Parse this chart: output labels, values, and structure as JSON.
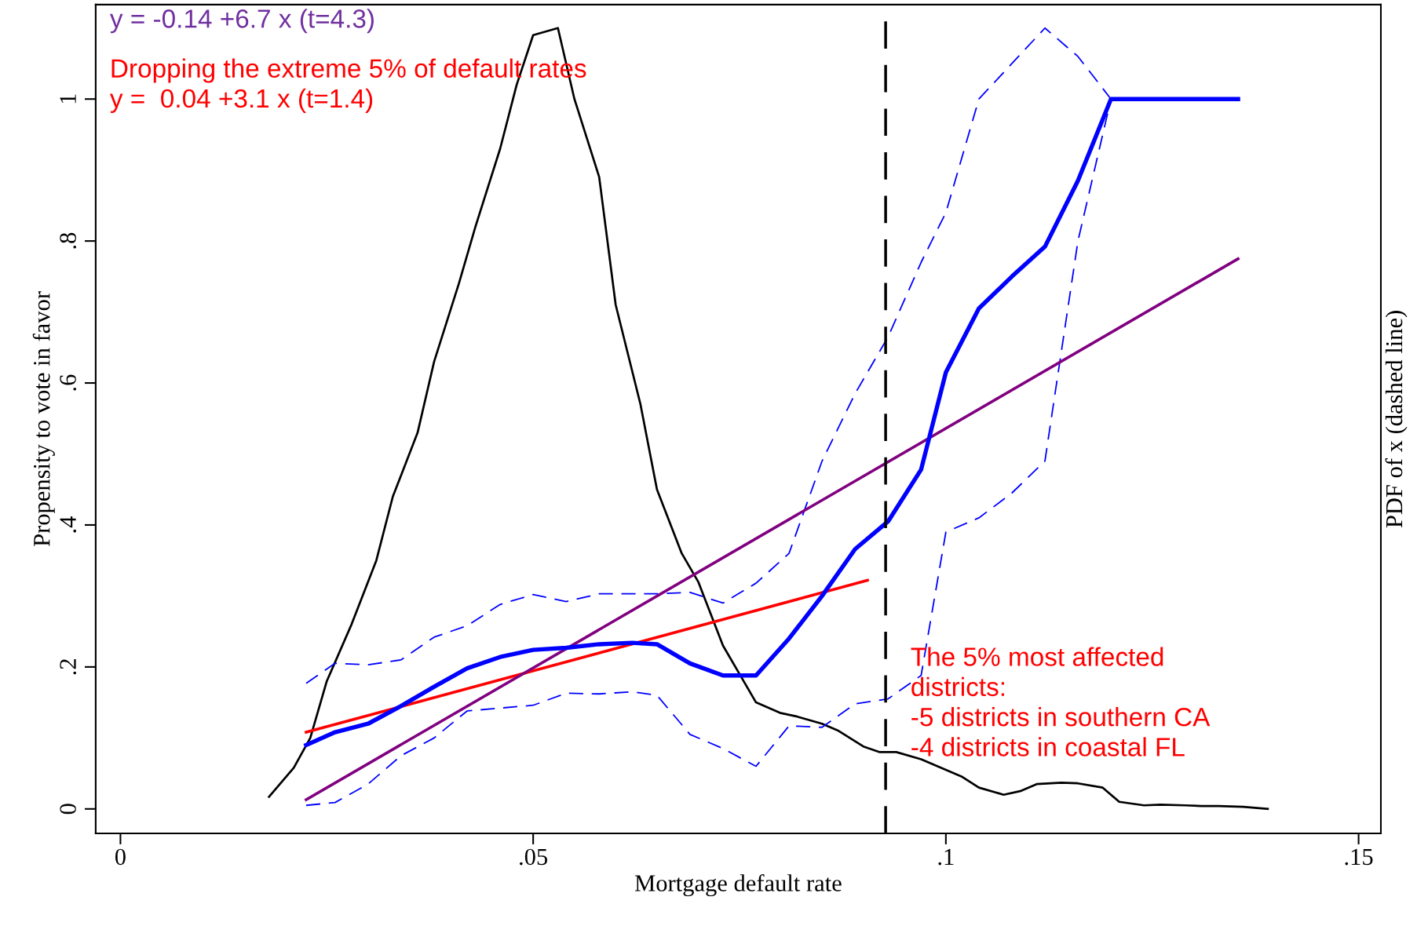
{
  "chart_data": {
    "type": "line",
    "xlabel": "Mortgage default rate",
    "ylabel": "Propensity to vote in favor",
    "y2label": "PDF of x (dashed line)",
    "xlim": [
      -0.003,
      0.1527
    ],
    "xticks": [
      0,
      {
        "value": 0.05,
        "label": ".05"
      },
      {
        "value": 0.1,
        "label": ".1"
      },
      {
        "value": 0.15,
        "label": ".15"
      }
    ],
    "ylim": [
      -0.0345,
      1.133
    ],
    "yticks": [
      0,
      {
        "value": 0.2,
        "label": ".2"
      },
      {
        "value": 0.4,
        "label": ".4"
      },
      {
        "value": 0.6,
        "label": ".6"
      },
      {
        "value": 0.8,
        "label": ".8"
      },
      1
    ],
    "grid": false,
    "legend": false,
    "marker": "none",
    "series": [
      {
        "color": "#000000",
        "line_style": "solid",
        "x": [
          0.018,
          0.021,
          0.023,
          0.025,
          0.028,
          0.031,
          0.033,
          0.036,
          0.038,
          0.041,
          0.043,
          0.046,
          0.048,
          0.05,
          0.053,
          0.055,
          0.058,
          0.06,
          0.063,
          0.065,
          0.068,
          0.07,
          0.073,
          0.075,
          0.077,
          0.08,
          0.082,
          0.085,
          0.087,
          0.09,
          0.092,
          0.094,
          0.097,
          0.099,
          0.102,
          0.104,
          0.107,
          0.109,
          0.111,
          0.114,
          0.116,
          0.119,
          0.121,
          0.124,
          0.126,
          0.129,
          0.131,
          0.133,
          0.136,
          0.139
        ],
        "values": [
          0.017,
          0.058,
          0.1,
          0.18,
          0.26,
          0.35,
          0.44,
          0.53,
          0.63,
          0.74,
          0.82,
          0.93,
          1.02,
          1.09,
          1.1,
          1.0,
          0.89,
          0.71,
          0.57,
          0.45,
          0.36,
          0.32,
          0.23,
          0.19,
          0.15,
          0.135,
          0.13,
          0.12,
          0.11,
          0.088,
          0.08,
          0.08,
          0.07,
          0.06,
          0.045,
          0.03,
          0.02,
          0.025,
          0.035,
          0.037,
          0.036,
          0.03,
          0.01,
          0.005,
          0.006,
          0.005,
          0.004,
          0.004,
          0.003,
          0.0
        ]
      },
      {
        "color": "#0000ff",
        "line_style": "dashed",
        "x": [
          0.0225,
          0.026,
          0.03,
          0.034,
          0.038,
          0.042,
          0.046,
          0.05,
          0.054,
          0.058,
          0.062,
          0.065,
          0.069,
          0.073,
          0.077,
          0.081,
          0.085,
          0.089,
          0.093,
          0.097,
          0.1,
          0.104,
          0.108,
          0.112,
          0.116,
          0.12
        ],
        "values": [
          0.177,
          0.205,
          0.203,
          0.21,
          0.242,
          0.258,
          0.288,
          0.302,
          0.292,
          0.303,
          0.303,
          0.303,
          0.305,
          0.29,
          0.318,
          0.36,
          0.49,
          0.585,
          0.665,
          0.77,
          0.84,
          1.0,
          1.05,
          1.1,
          1.06,
          1.0
        ]
      },
      {
        "color": "#0000ff",
        "line_style": "dashed",
        "x": [
          0.0225,
          0.026,
          0.03,
          0.034,
          0.038,
          0.042,
          0.046,
          0.05,
          0.054,
          0.058,
          0.062,
          0.065,
          0.069,
          0.073,
          0.077,
          0.081,
          0.085,
          0.089,
          0.093,
          0.097,
          0.1,
          0.104,
          0.108,
          0.112,
          0.116,
          0.12
        ],
        "values": [
          0.005,
          0.009,
          0.035,
          0.075,
          0.1,
          0.138,
          0.142,
          0.146,
          0.163,
          0.162,
          0.165,
          0.16,
          0.105,
          0.085,
          0.06,
          0.117,
          0.115,
          0.148,
          0.155,
          0.188,
          0.39,
          0.41,
          0.445,
          0.49,
          0.8,
          1.0
        ]
      },
      {
        "color": "#ff0000",
        "line_style": "solid",
        "x": [
          0.0225,
          0.0905
        ],
        "values": [
          0.108,
          0.322
        ]
      },
      {
        "color": "#800080",
        "line_style": "solid",
        "x": [
          0.0225,
          0.1354
        ],
        "values": [
          0.013,
          0.775
        ]
      },
      {
        "color": "#0000ff",
        "line_style": "solid",
        "x": [
          0.0225,
          0.026,
          0.03,
          0.034,
          0.038,
          0.042,
          0.046,
          0.05,
          0.054,
          0.058,
          0.062,
          0.065,
          0.069,
          0.073,
          0.077,
          0.081,
          0.085,
          0.089,
          0.093,
          0.097,
          0.1,
          0.104,
          0.108,
          0.112,
          0.116,
          0.12,
          0.124,
          0.128,
          0.132,
          0.1354
        ],
        "values": [
          0.09,
          0.108,
          0.12,
          0.145,
          0.172,
          0.198,
          0.214,
          0.224,
          0.227,
          0.232,
          0.234,
          0.232,
          0.205,
          0.188,
          0.188,
          0.24,
          0.3,
          0.366,
          0.405,
          0.478,
          0.615,
          0.705,
          0.75,
          0.792,
          0.885,
          1.0,
          1.0,
          1.0,
          1.0,
          1.0
        ]
      }
    ],
    "ref_lines": [
      {
        "axis": "x",
        "value": 0.0927,
        "color": "#000000",
        "line_style": "dashed"
      }
    ],
    "annotations": [
      "y = -0.14 +6.7 x (t=4.3)",
      "Dropping the extreme 5% of default rates\ny =  0.04 +3.1 x (t=1.4)",
      "The 5% most affected\ndistricts:\n-5 districts in southern CA\n-4 districts in coastal FL"
    ]
  }
}
